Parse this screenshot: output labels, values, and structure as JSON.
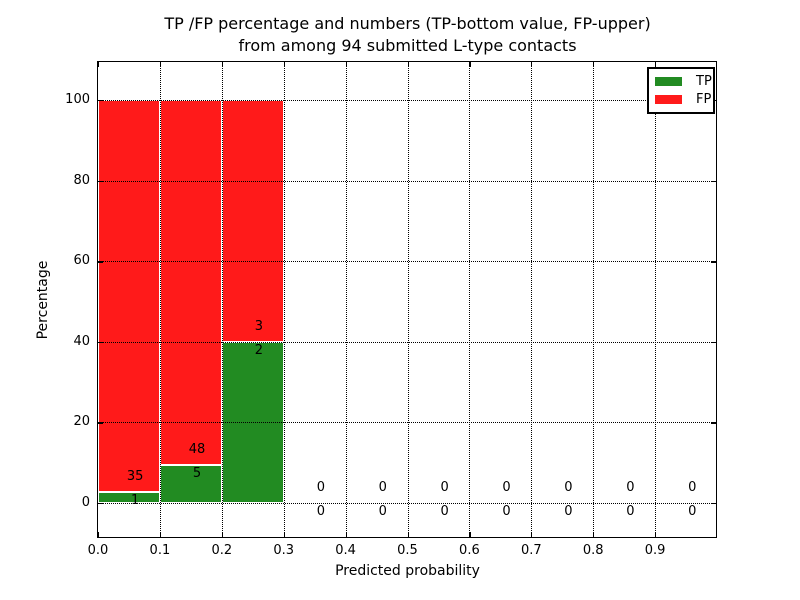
{
  "chart_data": {
    "type": "bar",
    "stacked": true,
    "title_line1": "TP /FP percentage and numbers (TP-bottom value, FP-upper)",
    "title_line2": "from among 94 submitted L-type contacts",
    "title": "TP /FP percentage and numbers (TP-bottom value, FP-upper) from among 94 submitted L-type contacts",
    "xlabel": "Predicted probability",
    "ylabel": "Percentage",
    "total_contacts": 94,
    "grid": "dotted",
    "legend_position": "upper right",
    "xlim": [
      0.0,
      1.0
    ],
    "ylim": [
      -8.7,
      109.5
    ],
    "bin_width": 0.1,
    "xticks": [
      {
        "value": 0.0,
        "label": "0.0"
      },
      {
        "value": 0.1,
        "label": "0.1"
      },
      {
        "value": 0.2,
        "label": "0.2"
      },
      {
        "value": 0.3,
        "label": "0.3"
      },
      {
        "value": 0.4,
        "label": "0.4"
      },
      {
        "value": 0.5,
        "label": "0.5"
      },
      {
        "value": 0.6,
        "label": "0.6"
      },
      {
        "value": 0.7,
        "label": "0.7"
      },
      {
        "value": 0.8,
        "label": "0.8"
      },
      {
        "value": 0.9,
        "label": "0.9"
      }
    ],
    "yticks": [
      {
        "value": 0,
        "label": "0"
      },
      {
        "value": 20,
        "label": "20"
      },
      {
        "value": 40,
        "label": "40"
      },
      {
        "value": 60,
        "label": "60"
      },
      {
        "value": 80,
        "label": "80"
      },
      {
        "value": 100,
        "label": "100"
      }
    ],
    "bins": [
      {
        "range": "0.0-0.1",
        "x0": 0.0,
        "x1": 0.1,
        "tp_count": 1,
        "fp_count": 35,
        "tp_pct": 2.78,
        "fp_pct": 97.22
      },
      {
        "range": "0.1-0.2",
        "x0": 0.1,
        "x1": 0.2,
        "tp_count": 5,
        "fp_count": 48,
        "tp_pct": 9.43,
        "fp_pct": 90.57
      },
      {
        "range": "0.2-0.3",
        "x0": 0.2,
        "x1": 0.3,
        "tp_count": 2,
        "fp_count": 3,
        "tp_pct": 40.0,
        "fp_pct": 60.0
      },
      {
        "range": "0.3-0.4",
        "x0": 0.3,
        "x1": 0.4,
        "tp_count": 0,
        "fp_count": 0,
        "tp_pct": 0,
        "fp_pct": 0
      },
      {
        "range": "0.4-0.5",
        "x0": 0.4,
        "x1": 0.5,
        "tp_count": 0,
        "fp_count": 0,
        "tp_pct": 0,
        "fp_pct": 0
      },
      {
        "range": "0.5-0.6",
        "x0": 0.5,
        "x1": 0.6,
        "tp_count": 0,
        "fp_count": 0,
        "tp_pct": 0,
        "fp_pct": 0
      },
      {
        "range": "0.6-0.7",
        "x0": 0.6,
        "x1": 0.7,
        "tp_count": 0,
        "fp_count": 0,
        "tp_pct": 0,
        "fp_pct": 0
      },
      {
        "range": "0.7-0.8",
        "x0": 0.7,
        "x1": 0.8,
        "tp_count": 0,
        "fp_count": 0,
        "tp_pct": 0,
        "fp_pct": 0
      },
      {
        "range": "0.8-0.9",
        "x0": 0.8,
        "x1": 0.9,
        "tp_count": 0,
        "fp_count": 0,
        "tp_pct": 0,
        "fp_pct": 0
      },
      {
        "range": "0.9-1.0",
        "x0": 0.9,
        "x1": 1.0,
        "tp_count": 0,
        "fp_count": 0,
        "tp_pct": 0,
        "fp_pct": 0
      }
    ],
    "legend": {
      "entries": [
        {
          "label": "TP",
          "color": "#228b22"
        },
        {
          "label": "FP",
          "color": "#ff1a1a"
        }
      ]
    },
    "colors": {
      "tp": "#228b22",
      "fp": "#ff1a1a",
      "grid": "#000000",
      "axes": "#000000",
      "text": "#000000",
      "background": "#ffffff"
    }
  }
}
